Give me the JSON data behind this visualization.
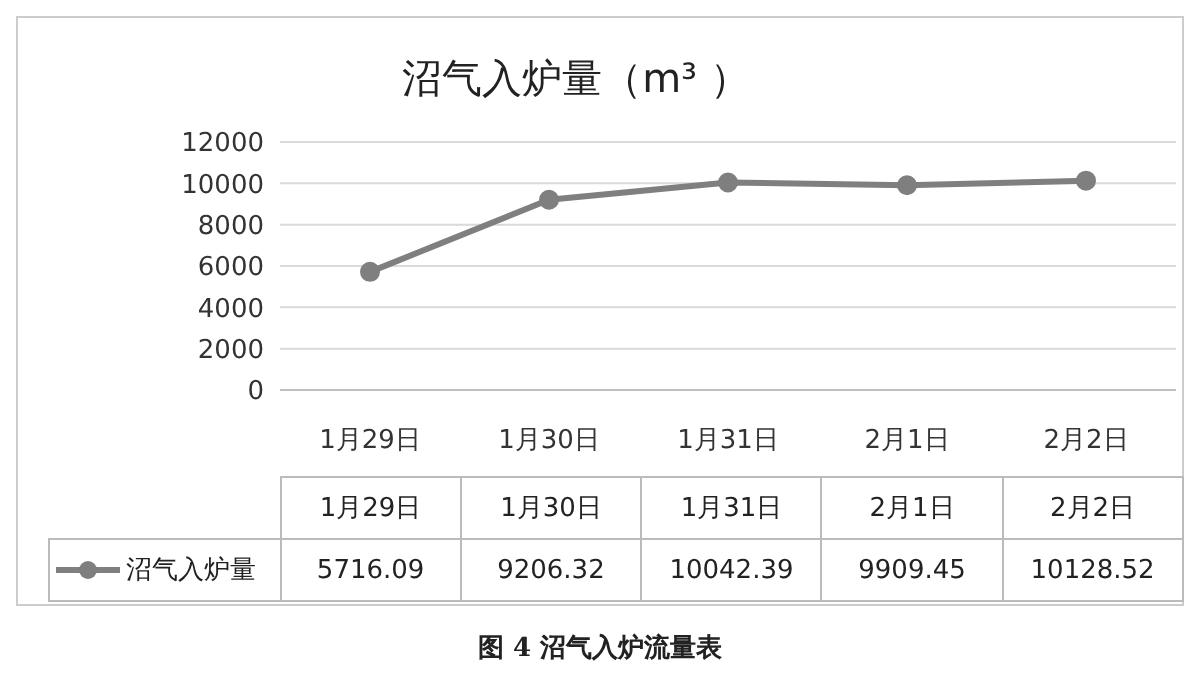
{
  "chart_data": {
    "type": "line",
    "title": "沼气入炉量（m³ ）",
    "categories": [
      "1月29日",
      "1月30日",
      "1月31日",
      "2月1日",
      "2月2日"
    ],
    "series": [
      {
        "name": "沼气入炉量",
        "color": "#7f7f7f",
        "values": [
          5716.09,
          9206.32,
          10042.39,
          9909.45,
          10128.52
        ]
      }
    ],
    "ylim": [
      0,
      12000
    ],
    "yticks": [
      0,
      2000,
      4000,
      6000,
      8000,
      10000,
      12000
    ],
    "grid": "y",
    "marker": "circle",
    "legend": "bottom",
    "data_labels": true,
    "annotations": [
      "图 4 沼气入炉流量表"
    ]
  }
}
